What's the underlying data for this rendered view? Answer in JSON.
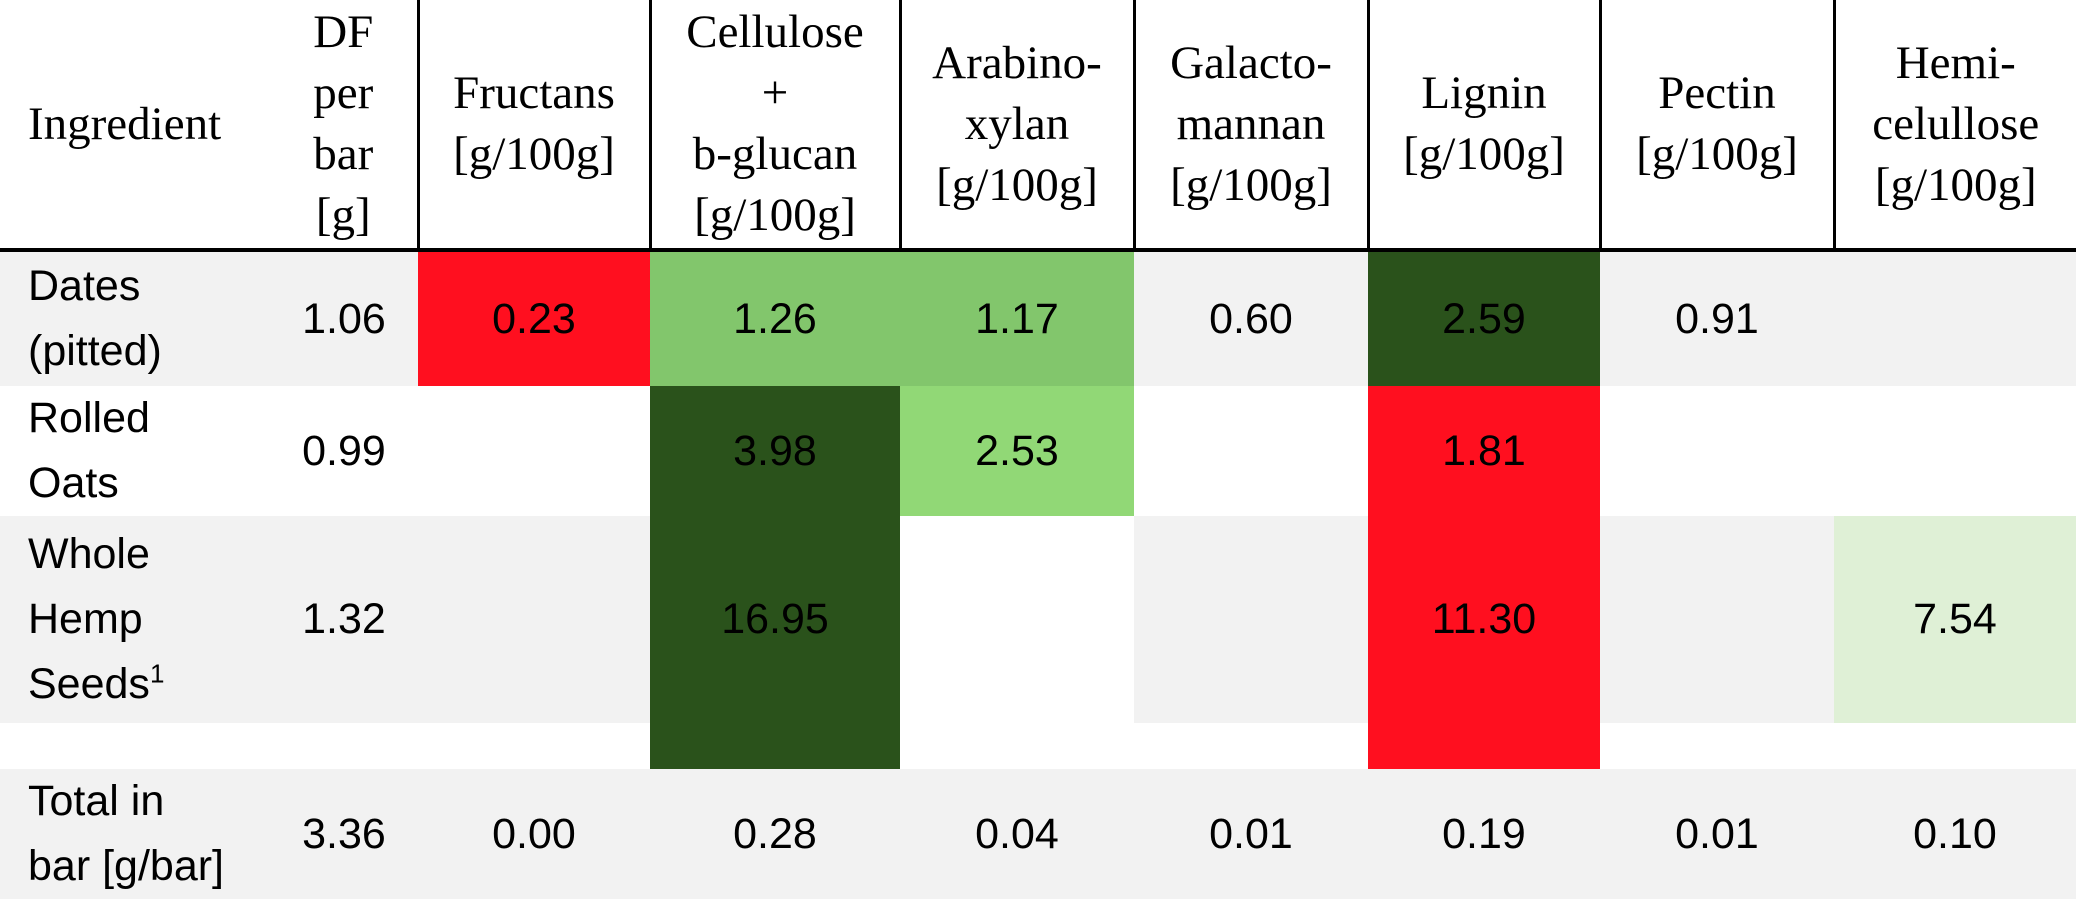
{
  "colors": {
    "red": "#ff0f1f",
    "dark_green": "#2a521b",
    "mid_green": "#82c66c",
    "light_green": "#91d876",
    "pale_green": "#dff0d6",
    "row_grey": "#f2f2f2",
    "white": "#ffffff"
  },
  "headers": {
    "ingredient": "Ingredient",
    "df": [
      "DF",
      "per",
      "bar",
      "[g]"
    ],
    "fructans": [
      "Fructans",
      "[g/100g]"
    ],
    "cellulose": [
      "Cellulose",
      "+",
      "b-glucan",
      "[g/100g]"
    ],
    "arabinoxylan": [
      "Arabino-",
      "xylan",
      "[g/100g]"
    ],
    "galactomannan": [
      "Galacto-",
      "mannan",
      "[g/100g]"
    ],
    "lignin": [
      "Lignin",
      "[g/100g]"
    ],
    "pectin": [
      "Pectin",
      "[g/100g]"
    ],
    "hemicellulose": [
      "Hemi-",
      "celullose",
      "[g/100g]"
    ]
  },
  "rows": {
    "dates": {
      "label": [
        "Dates",
        "(pitted)"
      ],
      "df": "1.06",
      "fructans": "0.23",
      "cellulose": "1.26",
      "arabinoxylan": "1.17",
      "galactomannan": "0.60",
      "lignin": "2.59",
      "pectin": "0.91",
      "hemicellulose": ""
    },
    "oats": {
      "label": [
        "Rolled",
        "Oats"
      ],
      "df": "0.99",
      "fructans": "",
      "cellulose": "3.98",
      "arabinoxylan": "2.53",
      "galactomannan": "",
      "lignin": "1.81",
      "pectin": "",
      "hemicellulose": ""
    },
    "hemp": {
      "label": [
        "Whole",
        "Hemp",
        "Seeds"
      ],
      "label_sup": "1",
      "df": "1.32",
      "fructans": "",
      "cellulose": "16.95",
      "arabinoxylan": "",
      "galactomannan": "",
      "lignin": "11.30",
      "pectin": "",
      "hemicellulose": "7.54"
    },
    "total": {
      "label": [
        "Total in",
        "bar [g/bar]"
      ],
      "df": "3.36",
      "fructans": "0.00",
      "cellulose": "0.28",
      "arabinoxylan": "0.04",
      "galactomannan": "0.01",
      "lignin": "0.19",
      "pectin": "0.01",
      "hemicellulose": "0.10"
    }
  }
}
